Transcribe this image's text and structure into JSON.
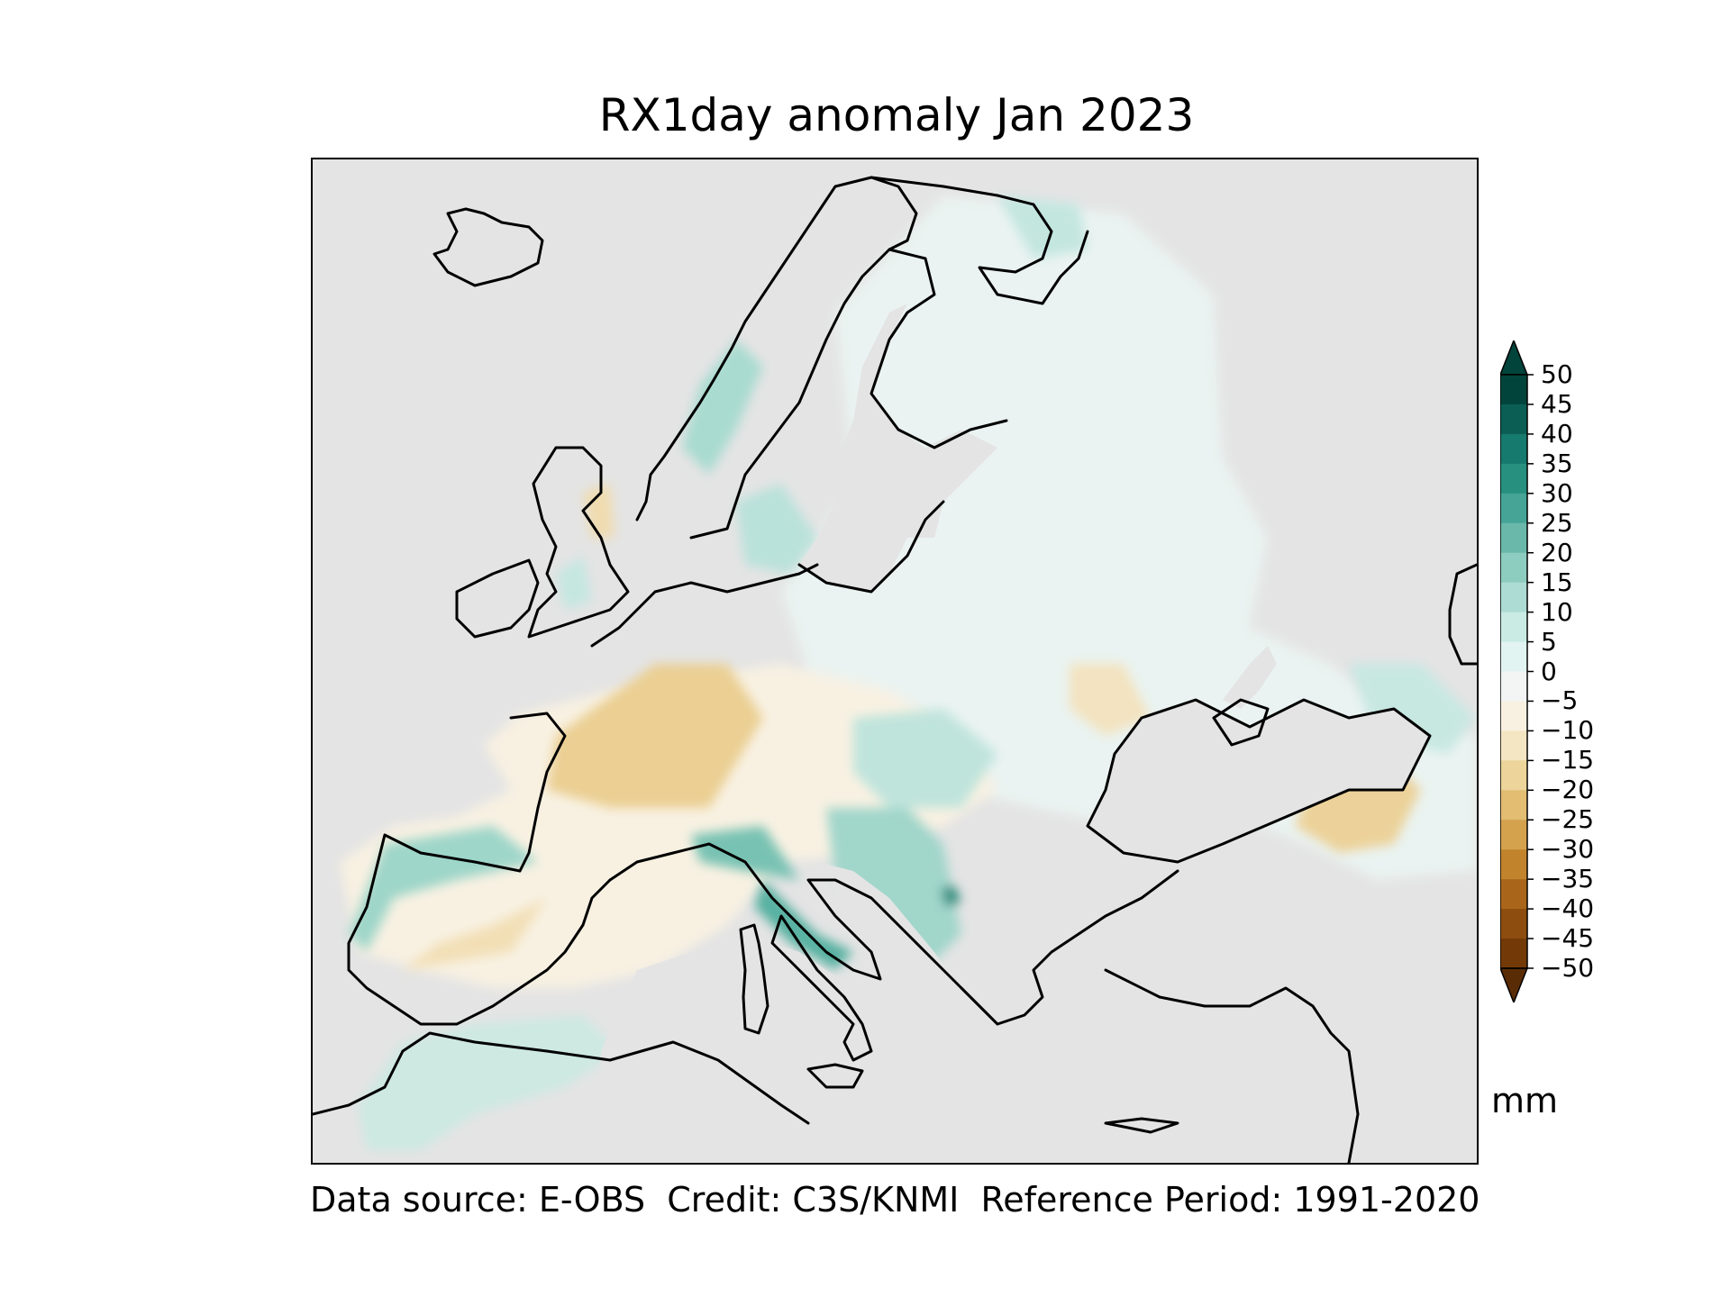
{
  "title": "RX1day anomaly Jan 2023",
  "unit_label": "mm",
  "footer": "Data source: E-OBS  Credit: C3S/KNMI  Reference Period: 1991-2020",
  "colorbar": {
    "ticks": [
      "50",
      "45",
      "40",
      "35",
      "30",
      "25",
      "20",
      "15",
      "10",
      "5",
      "0",
      "−5",
      "−10",
      "−15",
      "−20",
      "−25",
      "−30",
      "−35",
      "−40",
      "−45",
      "−50"
    ],
    "colors_top_to_bottom": [
      "#01443b",
      "#0b5e54",
      "#167a6e",
      "#27907f",
      "#45a496",
      "#6ab8a9",
      "#8dcdc0",
      "#acdcd3",
      "#c9ebe4",
      "#e2f4f1",
      "#f2f5f4",
      "#f8f1e2",
      "#f4e5c3",
      "#ecd49a",
      "#e2bd72",
      "#d4a14d",
      "#c1842c",
      "#a9661b",
      "#8c4d0f",
      "#733a08",
      "#5a2c05"
    ],
    "extend": "both"
  },
  "map": {
    "ocean_color": "#e4e4e4",
    "coast_color": "#000000",
    "projection": "Europe"
  }
}
